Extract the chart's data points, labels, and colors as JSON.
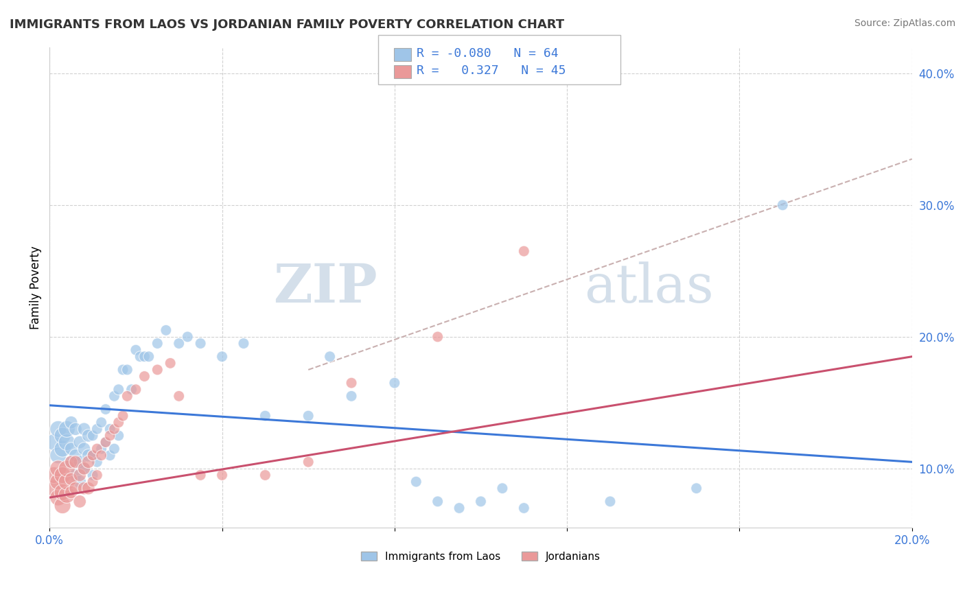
{
  "title": "IMMIGRANTS FROM LAOS VS JORDANIAN FAMILY POVERTY CORRELATION CHART",
  "source": "Source: ZipAtlas.com",
  "ylabel": "Family Poverty",
  "xlim": [
    0.0,
    0.2
  ],
  "ylim": [
    0.055,
    0.42
  ],
  "yticks": [
    0.1,
    0.2,
    0.3,
    0.4
  ],
  "ytick_labels": [
    "10.0%",
    "20.0%",
    "30.0%",
    "40.0%"
  ],
  "xtick_labels": [
    "0.0%",
    "",
    "",
    "",
    "",
    "20.0%"
  ],
  "blue_color": "#9fc5e8",
  "pink_color": "#ea9999",
  "blue_line_color": "#3c78d8",
  "pink_line_color": "#c9506e",
  "gray_dash_color": "#c9b0b0",
  "legend_r_blue": "-0.080",
  "legend_n_blue": "64",
  "legend_r_pink": "0.327",
  "legend_n_pink": "45",
  "blue_line_x0": 0.0,
  "blue_line_x1": 0.2,
  "blue_line_y0": 0.148,
  "blue_line_y1": 0.105,
  "pink_line_x0": 0.0,
  "pink_line_x1": 0.2,
  "pink_line_y0": 0.078,
  "pink_line_y1": 0.185,
  "gray_line_x0": 0.06,
  "gray_line_x1": 0.2,
  "gray_line_y0": 0.175,
  "gray_line_y1": 0.335,
  "blue_scatter_x": [
    0.001,
    0.002,
    0.002,
    0.003,
    0.003,
    0.004,
    0.004,
    0.005,
    0.005,
    0.005,
    0.006,
    0.006,
    0.006,
    0.007,
    0.007,
    0.007,
    0.008,
    0.008,
    0.008,
    0.009,
    0.009,
    0.01,
    0.01,
    0.01,
    0.011,
    0.011,
    0.012,
    0.012,
    0.013,
    0.013,
    0.014,
    0.014,
    0.015,
    0.015,
    0.016,
    0.016,
    0.017,
    0.018,
    0.019,
    0.02,
    0.021,
    0.022,
    0.023,
    0.025,
    0.027,
    0.03,
    0.032,
    0.035,
    0.04,
    0.045,
    0.05,
    0.06,
    0.065,
    0.07,
    0.08,
    0.085,
    0.09,
    0.095,
    0.1,
    0.105,
    0.11,
    0.13,
    0.15,
    0.17
  ],
  "blue_scatter_y": [
    0.12,
    0.11,
    0.13,
    0.115,
    0.125,
    0.12,
    0.13,
    0.105,
    0.115,
    0.135,
    0.095,
    0.11,
    0.13,
    0.09,
    0.105,
    0.12,
    0.1,
    0.115,
    0.13,
    0.11,
    0.125,
    0.095,
    0.11,
    0.125,
    0.105,
    0.13,
    0.115,
    0.135,
    0.12,
    0.145,
    0.11,
    0.13,
    0.115,
    0.155,
    0.125,
    0.16,
    0.175,
    0.175,
    0.16,
    0.19,
    0.185,
    0.185,
    0.185,
    0.195,
    0.205,
    0.195,
    0.2,
    0.195,
    0.185,
    0.195,
    0.14,
    0.14,
    0.185,
    0.155,
    0.165,
    0.09,
    0.075,
    0.07,
    0.075,
    0.085,
    0.07,
    0.075,
    0.085,
    0.3
  ],
  "pink_scatter_x": [
    0.001,
    0.001,
    0.002,
    0.002,
    0.002,
    0.003,
    0.003,
    0.003,
    0.004,
    0.004,
    0.004,
    0.005,
    0.005,
    0.005,
    0.006,
    0.006,
    0.007,
    0.007,
    0.008,
    0.008,
    0.009,
    0.009,
    0.01,
    0.01,
    0.011,
    0.011,
    0.012,
    0.013,
    0.014,
    0.015,
    0.016,
    0.017,
    0.018,
    0.02,
    0.022,
    0.025,
    0.028,
    0.03,
    0.035,
    0.04,
    0.05,
    0.06,
    0.07,
    0.09,
    0.11
  ],
  "pink_scatter_y": [
    0.085,
    0.095,
    0.078,
    0.09,
    0.1,
    0.072,
    0.082,
    0.095,
    0.08,
    0.09,
    0.1,
    0.082,
    0.092,
    0.105,
    0.085,
    0.105,
    0.075,
    0.095,
    0.085,
    0.1,
    0.085,
    0.105,
    0.09,
    0.11,
    0.095,
    0.115,
    0.11,
    0.12,
    0.125,
    0.13,
    0.135,
    0.14,
    0.155,
    0.16,
    0.17,
    0.175,
    0.18,
    0.155,
    0.095,
    0.095,
    0.095,
    0.105,
    0.165,
    0.2,
    0.265
  ],
  "background_color": "#ffffff",
  "grid_color": "#cccccc"
}
